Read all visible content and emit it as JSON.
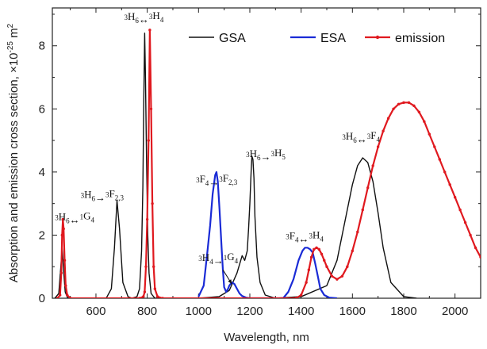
{
  "chart_data": {
    "type": "line",
    "xlabel": "Wavelength, nm",
    "ylabel": "Absorption and emission cross section, ×10",
    "ylabel_exp": "-25",
    "ylabel_unit": " m",
    "ylabel_unit_exp": "2",
    "xlim": [
      430,
      2100
    ],
    "ylim": [
      0,
      9.2
    ],
    "x_ticks": [
      600,
      800,
      1000,
      1200,
      1400,
      1600,
      1800,
      2000
    ],
    "x_tick_labels": [
      "600",
      "800",
      "1000",
      "1200",
      "1400",
      "1600",
      "1800",
      "2000"
    ],
    "y_ticks": [
      0,
      2,
      4,
      6,
      8
    ],
    "y_tick_labels": [
      "0",
      "2",
      "4",
      "6",
      "8"
    ],
    "grid": false,
    "legend_position": "top-right",
    "series": [
      {
        "name": "GSA",
        "color": "#111111",
        "marker": "none",
        "x": [
          440,
          455,
          463,
          468,
          473,
          480,
          490,
          640,
          660,
          672,
          682,
          692,
          705,
          725,
          740,
          760,
          770,
          778,
          783,
          787,
          790,
          793,
          797,
          802,
          807,
          815,
          830,
          860,
          1000,
          1080,
          1120,
          1150,
          1170,
          1180,
          1190,
          1195,
          1200,
          1205,
          1208,
          1212,
          1216,
          1220,
          1228,
          1240,
          1260,
          1300,
          1400,
          1500,
          1540,
          1570,
          1600,
          1620,
          1640,
          1660,
          1680,
          1700,
          1720,
          1750,
          1800,
          1850
        ],
        "y": [
          0,
          0.15,
          1.0,
          1.6,
          1.0,
          0.2,
          0,
          0,
          0.3,
          1.6,
          3.1,
          2.2,
          0.5,
          0.05,
          0,
          0.05,
          0.3,
          1.5,
          3.5,
          6.5,
          8.4,
          7.0,
          4.5,
          2.0,
          0.8,
          0.15,
          0,
          0,
          0,
          0.05,
          0.25,
          0.8,
          1.35,
          1.2,
          1.5,
          2.2,
          3.0,
          4.0,
          4.5,
          4.4,
          3.8,
          2.6,
          1.3,
          0.5,
          0.1,
          0,
          0.05,
          0.4,
          1.2,
          2.4,
          3.6,
          4.2,
          4.45,
          4.3,
          3.7,
          2.7,
          1.6,
          0.5,
          0.05,
          0
        ]
      },
      {
        "name": "ESA",
        "color": "#1a2bd6",
        "marker": "none",
        "x": [
          1000,
          1020,
          1035,
          1045,
          1055,
          1065,
          1070,
          1075,
          1082,
          1090,
          1095,
          1100,
          1108,
          1115,
          1120,
          1130,
          1140,
          1150,
          1160,
          1170,
          1185,
          1200,
          1330,
          1350,
          1370,
          1390,
          1405,
          1415,
          1425,
          1435,
          1445,
          1455,
          1465,
          1475,
          1490,
          1510,
          1540
        ],
        "y": [
          0.05,
          0.4,
          1.5,
          2.3,
          3.3,
          3.9,
          4.0,
          3.7,
          2.8,
          1.6,
          0.9,
          0.35,
          0.2,
          0.3,
          0.4,
          0.5,
          0.45,
          0.3,
          0.15,
          0.07,
          0.02,
          0,
          0,
          0.2,
          0.6,
          1.2,
          1.5,
          1.6,
          1.6,
          1.55,
          1.45,
          1.1,
          0.7,
          0.3,
          0.1,
          0.02,
          0
        ]
      },
      {
        "name": "emission",
        "color": "#e0191f",
        "marker": "dot",
        "x": [
          450,
          460,
          465,
          468,
          471,
          474,
          478,
          482,
          488,
          500,
          770,
          785,
          790,
          795,
          800,
          805,
          810,
          815,
          820,
          825,
          830,
          840,
          860,
          1380,
          1400,
          1420,
          1430,
          1440,
          1450,
          1460,
          1470,
          1480,
          1490,
          1500,
          1520,
          1540,
          1560,
          1580,
          1600,
          1620,
          1640,
          1660,
          1680,
          1700,
          1720,
          1740,
          1760,
          1780,
          1800,
          1820,
          1840,
          1860,
          1880,
          1900,
          1920,
          1940,
          1960,
          1980,
          2000,
          2020,
          2040,
          2060,
          2080,
          2100
        ],
        "y": [
          0,
          0.1,
          0.8,
          2.0,
          2.5,
          2.2,
          1.2,
          0.4,
          0.1,
          0,
          0,
          0.05,
          0.2,
          1.0,
          2.5,
          5.0,
          8.5,
          6.0,
          3.0,
          1.0,
          0.3,
          0.05,
          0,
          0,
          0.1,
          0.5,
          0.9,
          1.3,
          1.55,
          1.6,
          1.55,
          1.4,
          1.2,
          1.0,
          0.7,
          0.6,
          0.7,
          1.0,
          1.5,
          2.1,
          2.8,
          3.5,
          4.2,
          4.8,
          5.3,
          5.7,
          6.0,
          6.15,
          6.2,
          6.2,
          6.1,
          5.9,
          5.6,
          5.2,
          4.8,
          4.4,
          4.0,
          3.6,
          3.2,
          2.8,
          2.4,
          2.0,
          1.6,
          1.3
        ]
      }
    ],
    "annotations": [
      {
        "id": "a1",
        "parts": [
          [
            "",
            "3"
          ],
          [
            "H",
            ""
          ],
          [
            "6",
            "sub"
          ],
          [
            "↔",
            ""
          ],
          [
            "",
            "1"
          ],
          [
            "G",
            ""
          ],
          [
            "4",
            "sub"
          ]
        ],
        "x": 440,
        "y": 2.35
      },
      {
        "id": "a2",
        "parts": [
          [
            "",
            "3"
          ],
          [
            "H",
            ""
          ],
          [
            "6",
            "sub"
          ],
          [
            "→",
            ""
          ],
          [
            "",
            "3"
          ],
          [
            "F",
            ""
          ],
          [
            "2,3",
            "sub"
          ]
        ],
        "x": 540,
        "y": 3.05
      },
      {
        "id": "a3",
        "parts": [
          [
            "",
            "3"
          ],
          [
            "H",
            ""
          ],
          [
            "6",
            "sub"
          ],
          [
            "↔",
            ""
          ],
          [
            "",
            "3"
          ],
          [
            "H",
            ""
          ],
          [
            "4",
            "sub"
          ]
        ],
        "x": 710,
        "y": 8.7
      },
      {
        "id": "a4",
        "parts": [
          [
            "",
            "3"
          ],
          [
            "F",
            ""
          ],
          [
            "4",
            "sub"
          ],
          [
            "→",
            ""
          ],
          [
            "",
            "3"
          ],
          [
            "F",
            ""
          ],
          [
            "2,3",
            "sub"
          ]
        ],
        "x": 990,
        "y": 3.55
      },
      {
        "id": "a5",
        "parts": [
          [
            "",
            "3"
          ],
          [
            "H",
            ""
          ],
          [
            "6",
            "sub"
          ],
          [
            "→",
            ""
          ],
          [
            "",
            "3"
          ],
          [
            "H",
            ""
          ],
          [
            "5",
            "sub"
          ]
        ],
        "x": 1185,
        "y": 4.35
      },
      {
        "id": "a6",
        "parts": [
          [
            "",
            "3"
          ],
          [
            "H",
            ""
          ],
          [
            "4",
            "sub"
          ],
          [
            "→",
            ""
          ],
          [
            "",
            "1"
          ],
          [
            "G",
            ""
          ],
          [
            "4",
            "sub"
          ]
        ],
        "x": 1000,
        "y": 1.05
      },
      {
        "id": "a7",
        "parts": [
          [
            "",
            "3"
          ],
          [
            "F",
            ""
          ],
          [
            "4",
            "sub"
          ],
          [
            "↔",
            ""
          ],
          [
            "",
            "3"
          ],
          [
            "H",
            ""
          ],
          [
            "4",
            "sub"
          ]
        ],
        "x": 1340,
        "y": 1.75
      },
      {
        "id": "a8",
        "parts": [
          [
            "",
            "3"
          ],
          [
            "H",
            ""
          ],
          [
            "6",
            "sub"
          ],
          [
            "↔",
            ""
          ],
          [
            "",
            "3"
          ],
          [
            "F",
            ""
          ],
          [
            "4",
            "sub"
          ]
        ],
        "x": 1560,
        "y": 4.9
      }
    ],
    "arrow": {
      "from": [
        1095,
        0.9
      ],
      "to": [
        1130,
        0.45
      ]
    }
  }
}
